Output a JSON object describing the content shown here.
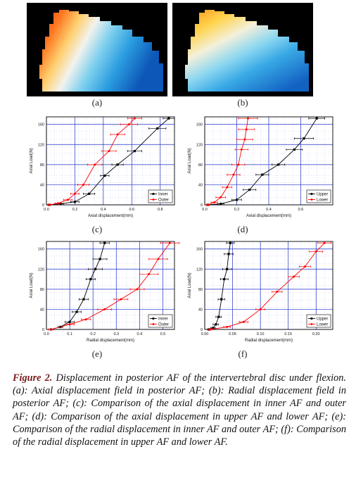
{
  "figure": {
    "panel_labels": {
      "a": "(a)",
      "b": "(b)",
      "c": "(c)",
      "d": "(d)",
      "e": "(e)",
      "f": "(f)"
    },
    "caption": {
      "prefix": "Figure 2.",
      "text": "Displacement in posterior AF of the intervertebral disc under flexion. (a): Axial displacement field in posterior AF; (b): Radial displacement field in posterior AF; (c): Comparison of the axial displacement in inner AF and outer AF; (d): Comparison of the axial displacement in upper AF and lower AF; (e): Comparison of the radial displacement in inner AF and outer AF; (f): Comparison of the radial displacement in upper AF and lower AF."
    }
  },
  "chart_data": [
    {
      "id": "c",
      "type": "line",
      "xlabel": "Axial displacement(mm)",
      "ylabel": "Axial Load(N)",
      "xlim": [
        0,
        0.9
      ],
      "ylim": [
        0,
        175
      ],
      "xticks": [
        "0.0",
        "0.2",
        "0.4",
        "0.6",
        "0.8"
      ],
      "xtick_values": [
        0,
        0.2,
        0.4,
        0.6,
        0.8
      ],
      "yticks": [
        "0",
        "40",
        "80",
        "120",
        "160"
      ],
      "ytick_values": [
        0,
        40,
        80,
        120,
        160
      ],
      "legend_position": "bottom-right",
      "grid": true,
      "series": [
        {
          "name": "Inner",
          "color": "#000000",
          "x": [
            0.02,
            0.1,
            0.2,
            0.3,
            0.41,
            0.5,
            0.62,
            0.78,
            0.86
          ],
          "y": [
            0,
            2,
            6,
            22,
            58,
            80,
            107,
            152,
            172
          ],
          "err": [
            0.01,
            0.02,
            0.03,
            0.04,
            0.03,
            0.04,
            0.05,
            0.06,
            0.04
          ]
        },
        {
          "name": "Outer",
          "color": "#ff0000",
          "x": [
            0.02,
            0.08,
            0.15,
            0.2,
            0.26,
            0.34,
            0.44,
            0.5,
            0.58,
            0.62
          ],
          "y": [
            0,
            3,
            10,
            22,
            40,
            80,
            107,
            140,
            160,
            172
          ],
          "err": [
            0.01,
            0.02,
            0.03,
            0.03,
            0.04,
            0.05,
            0.05,
            0.05,
            0.06,
            0.05
          ]
        }
      ]
    },
    {
      "id": "d",
      "type": "line",
      "xlabel": "Axial displacement(mm)",
      "ylabel": "Axial Load(N)",
      "xlim": [
        0,
        0.8
      ],
      "ylim": [
        0,
        175
      ],
      "xticks": [
        "0.0",
        "0.2",
        "0.4",
        "0.6"
      ],
      "xtick_values": [
        0,
        0.2,
        0.4,
        0.6
      ],
      "yticks": [
        "0",
        "40",
        "80",
        "120",
        "160"
      ],
      "ytick_values": [
        0,
        40,
        80,
        120,
        160
      ],
      "legend_position": "bottom-right",
      "grid": true,
      "series": [
        {
          "name": "Upper",
          "color": "#000000",
          "x": [
            0.02,
            0.1,
            0.2,
            0.28,
            0.36,
            0.46,
            0.56,
            0.62,
            0.7
          ],
          "y": [
            0,
            2,
            10,
            30,
            60,
            80,
            110,
            132,
            172
          ],
          "err": [
            0.01,
            0.02,
            0.03,
            0.04,
            0.04,
            0.04,
            0.05,
            0.06,
            0.05
          ]
        },
        {
          "name": "Lower",
          "color": "#ff0000",
          "x": [
            0.02,
            0.06,
            0.1,
            0.14,
            0.18,
            0.21,
            0.23,
            0.25,
            0.26,
            0.27
          ],
          "y": [
            0,
            5,
            15,
            35,
            60,
            80,
            110,
            130,
            150,
            172
          ],
          "err": [
            0.01,
            0.02,
            0.03,
            0.03,
            0.04,
            0.04,
            0.04,
            0.05,
            0.05,
            0.06
          ]
        }
      ]
    },
    {
      "id": "e",
      "type": "line",
      "xlabel": "Radial displacement(mm)",
      "ylabel": "Axial Load(N)",
      "xlim": [
        0,
        0.55
      ],
      "ylim": [
        0,
        175
      ],
      "xticks": [
        "0.0",
        "0.1",
        "0.2",
        "0.3",
        "0.4",
        "0.5"
      ],
      "xtick_values": [
        0,
        0.1,
        0.2,
        0.3,
        0.4,
        0.5
      ],
      "yticks": [
        "0",
        "40",
        "80",
        "120",
        "160"
      ],
      "ytick_values": [
        0,
        40,
        80,
        120,
        160
      ],
      "legend_position": "bottom-right",
      "grid": true,
      "series": [
        {
          "name": "Inner",
          "color": "#000000",
          "x": [
            0.02,
            0.06,
            0.1,
            0.13,
            0.16,
            0.19,
            0.21,
            0.23,
            0.25
          ],
          "y": [
            0,
            5,
            15,
            35,
            60,
            100,
            120,
            140,
            172
          ],
          "err": [
            0.01,
            0.01,
            0.02,
            0.02,
            0.02,
            0.02,
            0.03,
            0.03,
            0.02
          ]
        },
        {
          "name": "Outer",
          "color": "#ff0000",
          "x": [
            0.02,
            0.1,
            0.17,
            0.25,
            0.32,
            0.39,
            0.44,
            0.48,
            0.53
          ],
          "y": [
            0,
            10,
            20,
            40,
            60,
            80,
            110,
            140,
            172
          ],
          "err": [
            0.01,
            0.02,
            0.02,
            0.03,
            0.03,
            0.03,
            0.04,
            0.04,
            0.04
          ]
        }
      ]
    },
    {
      "id": "f",
      "type": "line",
      "xlabel": "Radial displacement(mm)",
      "ylabel": "Axial Load(N)",
      "xlim": [
        0,
        0.23
      ],
      "ylim": [
        0,
        175
      ],
      "xticks": [
        "0.00",
        "0.05",
        "0.10",
        "0.15",
        "0.20"
      ],
      "xtick_values": [
        0,
        0.05,
        0.1,
        0.15,
        0.2
      ],
      "yticks": [
        "0",
        "40",
        "80",
        "120",
        "160"
      ],
      "ytick_values": [
        0,
        40,
        80,
        120,
        160
      ],
      "legend_position": "bottom-right",
      "grid": true,
      "series": [
        {
          "name": "Upper",
          "color": "#000000",
          "x": [
            0.008,
            0.015,
            0.02,
            0.025,
            0.03,
            0.035,
            0.04,
            0.043,
            0.046
          ],
          "y": [
            0,
            3,
            10,
            25,
            60,
            100,
            120,
            150,
            172
          ],
          "err": [
            0.003,
            0.004,
            0.005,
            0.005,
            0.006,
            0.007,
            0.008,
            0.008,
            0.007
          ]
        },
        {
          "name": "Lower",
          "color": "#ff0000",
          "x": [
            0.01,
            0.04,
            0.07,
            0.1,
            0.13,
            0.16,
            0.18,
            0.2,
            0.215
          ],
          "y": [
            0,
            5,
            15,
            40,
            75,
            105,
            125,
            155,
            172
          ],
          "err": [
            0.004,
            0.006,
            0.008,
            0.008,
            0.009,
            0.01,
            0.01,
            0.012,
            0.012
          ]
        }
      ]
    }
  ]
}
